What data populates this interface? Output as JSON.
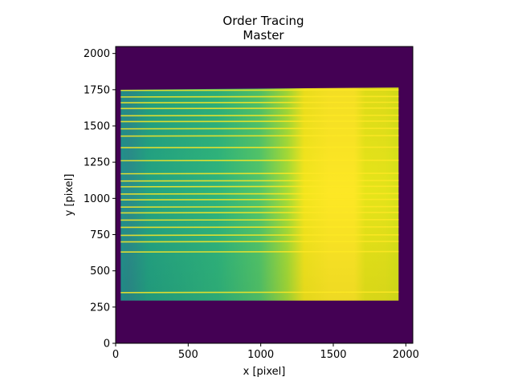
{
  "chart_data": {
    "type": "heatmap",
    "title": "Order Tracing",
    "subtitle": "Master",
    "xlabel": "x [pixel]",
    "ylabel": "y [pixel]",
    "xlim": [
      0,
      2048
    ],
    "ylim": [
      0,
      2048
    ],
    "xticks": [
      "0",
      "500",
      "1000",
      "1500",
      "2000"
    ],
    "yticks": [
      "0",
      "250",
      "500",
      "750",
      "1000",
      "1250",
      "1500",
      "1750",
      "2000"
    ],
    "grid": false,
    "colormap": "viridis",
    "colors": {
      "background": "#440154",
      "dim": "#21918c",
      "mid": "#35b779",
      "bright": "#fde725"
    },
    "illuminated_region": {
      "x": [
        35,
        1950
      ],
      "y_bottom": 295,
      "y_top_left": 1750,
      "y_top_right": 1765,
      "brightest_x": [
        1450,
        1700
      ]
    },
    "order_traces_y": [
      350,
      630,
      700,
      745,
      800,
      850,
      900,
      940,
      990,
      1030,
      1080,
      1120,
      1170,
      1260,
      1350,
      1430,
      1480,
      1530,
      1570,
      1620,
      1660,
      1700,
      1745
    ]
  }
}
